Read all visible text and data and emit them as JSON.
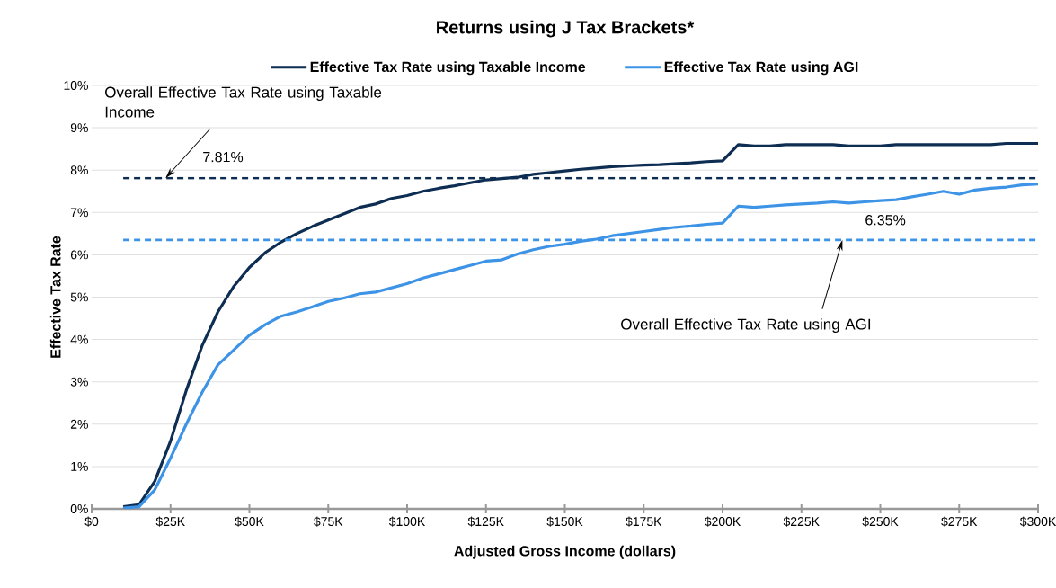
{
  "chart_data": {
    "type": "line",
    "title": "Returns using J Tax Brackets*",
    "xlabel": "Adjusted Gross Income (dollars)",
    "ylabel": "Effective Tax Rate",
    "x": [
      10000,
      15000,
      20000,
      25000,
      30000,
      35000,
      40000,
      45000,
      50000,
      55000,
      60000,
      65000,
      70000,
      75000,
      80000,
      85000,
      90000,
      95000,
      100000,
      105000,
      110000,
      115000,
      120000,
      125000,
      130000,
      135000,
      140000,
      145000,
      150000,
      155000,
      160000,
      165000,
      170000,
      175000,
      180000,
      185000,
      190000,
      195000,
      200000,
      205000,
      210000,
      215000,
      220000,
      225000,
      230000,
      235000,
      240000,
      245000,
      250000,
      255000,
      260000,
      265000,
      270000,
      275000,
      280000,
      285000,
      290000,
      295000,
      300000
    ],
    "series": [
      {
        "name": "Effective Tax Rate using Taxable Income",
        "color": "#0d2d52",
        "values": [
          0.05,
          0.1,
          0.65,
          1.6,
          2.8,
          3.85,
          4.65,
          5.25,
          5.7,
          6.05,
          6.3,
          6.5,
          6.67,
          6.82,
          6.97,
          7.12,
          7.2,
          7.33,
          7.4,
          7.5,
          7.57,
          7.63,
          7.7,
          7.77,
          7.8,
          7.83,
          7.9,
          7.94,
          7.98,
          8.02,
          8.05,
          8.08,
          8.1,
          8.12,
          8.13,
          8.15,
          8.17,
          8.2,
          8.22,
          8.6,
          8.57,
          8.57,
          8.6,
          8.6,
          8.6,
          8.6,
          8.57,
          8.57,
          8.57,
          8.6,
          8.6,
          8.6,
          8.6,
          8.6,
          8.6,
          8.6,
          8.63,
          8.63,
          8.63
        ]
      },
      {
        "name": "Effective Tax Rate using AGI",
        "color": "#3d93e6",
        "values": [
          0.02,
          0.05,
          0.45,
          1.2,
          2.0,
          2.75,
          3.4,
          3.75,
          4.1,
          4.35,
          4.55,
          4.65,
          4.77,
          4.9,
          4.98,
          5.08,
          5.12,
          5.22,
          5.32,
          5.45,
          5.55,
          5.65,
          5.75,
          5.85,
          5.88,
          6.02,
          6.12,
          6.2,
          6.25,
          6.32,
          6.37,
          6.45,
          6.5,
          6.55,
          6.6,
          6.65,
          6.68,
          6.72,
          6.75,
          7.15,
          7.12,
          7.15,
          7.18,
          7.2,
          7.22,
          7.25,
          7.22,
          7.25,
          7.28,
          7.3,
          7.37,
          7.43,
          7.5,
          7.43,
          7.53,
          7.57,
          7.6,
          7.65,
          7.67
        ]
      }
    ],
    "ref_lines": [
      {
        "axis": "y",
        "value": 7.81,
        "label": "7.81%",
        "color": "#0d2d52",
        "line_style": "dashed"
      },
      {
        "axis": "y",
        "value": 6.35,
        "label": "6.35%",
        "color": "#3d93e6",
        "line_style": "dashed"
      }
    ],
    "annotations": [
      {
        "text": "Overall Effective Tax Rate using Taxable Income",
        "x": 23400,
        "y": 7.81
      },
      {
        "text": "Overall Effective Tax Rate using AGI",
        "x": 238000,
        "y": 6.35
      }
    ],
    "xlim": [
      0,
      300000
    ],
    "xticks": [
      {
        "value": 0,
        "label": "$0"
      },
      {
        "value": 25000,
        "label": "$25K"
      },
      {
        "value": 50000,
        "label": "$50K"
      },
      {
        "value": 75000,
        "label": "$75K"
      },
      {
        "value": 100000,
        "label": "$100K"
      },
      {
        "value": 125000,
        "label": "$125K"
      },
      {
        "value": 150000,
        "label": "$150K"
      },
      {
        "value": 175000,
        "label": "$175K"
      },
      {
        "value": 200000,
        "label": "$200K"
      },
      {
        "value": 225000,
        "label": "$225K"
      },
      {
        "value": 250000,
        "label": "$250K"
      },
      {
        "value": 275000,
        "label": "$275K"
      },
      {
        "value": 300000,
        "label": "$300K"
      }
    ],
    "ylim": [
      0,
      10
    ],
    "yticks": [
      {
        "value": 0,
        "label": "0%"
      },
      {
        "value": 1,
        "label": "1%"
      },
      {
        "value": 2,
        "label": "2%"
      },
      {
        "value": 3,
        "label": "3%"
      },
      {
        "value": 4,
        "label": "4%"
      },
      {
        "value": 5,
        "label": "5%"
      },
      {
        "value": 6,
        "label": "6%"
      },
      {
        "value": 7,
        "label": "7%"
      },
      {
        "value": 8,
        "label": "8%"
      },
      {
        "value": 9,
        "label": "9%"
      },
      {
        "value": 10,
        "label": "10%"
      }
    ],
    "grid": "y",
    "legend": "top",
    "line_style": "solid",
    "marker": "none"
  }
}
